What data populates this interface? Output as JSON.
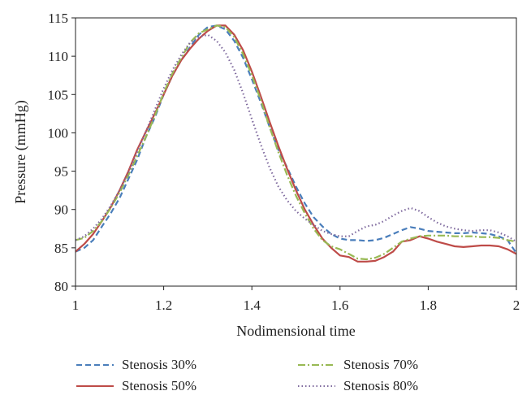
{
  "chart_data": {
    "type": "line",
    "xlabel": "Nodimensional time",
    "ylabel": "Pressure (mmHg)",
    "xlim": [
      1,
      2
    ],
    "ylim": [
      80,
      115
    ],
    "xticks": [
      "1",
      "1.2",
      "1.4",
      "1.6",
      "1.8",
      "2"
    ],
    "yticks": [
      "80",
      "85",
      "90",
      "95",
      "100",
      "105",
      "110",
      "115"
    ],
    "grid": false,
    "legend_position": "bottom",
    "series": [
      {
        "name": "Stenosis 30%",
        "color": "#4a7ebb",
        "dash": "dashed",
        "x": [
          1.0,
          1.02,
          1.04,
          1.06,
          1.08,
          1.1,
          1.12,
          1.14,
          1.16,
          1.18,
          1.2,
          1.22,
          1.24,
          1.26,
          1.28,
          1.3,
          1.32,
          1.34,
          1.36,
          1.38,
          1.4,
          1.42,
          1.44,
          1.46,
          1.48,
          1.5,
          1.52,
          1.54,
          1.56,
          1.58,
          1.6,
          1.62,
          1.64,
          1.66,
          1.68,
          1.7,
          1.72,
          1.74,
          1.76,
          1.78,
          1.8,
          1.82,
          1.84,
          1.86,
          1.88,
          1.9,
          1.92,
          1.94,
          1.96,
          1.98,
          2.0
        ],
        "y": [
          84.5,
          85.0,
          86.0,
          87.8,
          89.5,
          91.5,
          94.0,
          96.5,
          99.5,
          102.0,
          105.0,
          107.5,
          109.5,
          111.2,
          112.8,
          113.8,
          114.0,
          113.5,
          112.0,
          109.8,
          107.0,
          104.0,
          100.8,
          97.8,
          95.5,
          93.0,
          90.8,
          89.0,
          87.8,
          86.8,
          86.2,
          86.0,
          86.0,
          85.9,
          86.0,
          86.3,
          86.8,
          87.3,
          87.7,
          87.5,
          87.2,
          87.1,
          87.0,
          86.9,
          86.9,
          87.0,
          86.9,
          86.8,
          86.5,
          86.0,
          84.3
        ]
      },
      {
        "name": "Stenosis 50%",
        "color": "#be4b48",
        "dash": "solid",
        "x": [
          1.0,
          1.02,
          1.04,
          1.06,
          1.08,
          1.1,
          1.12,
          1.14,
          1.16,
          1.18,
          1.2,
          1.22,
          1.24,
          1.26,
          1.28,
          1.3,
          1.32,
          1.34,
          1.36,
          1.38,
          1.4,
          1.42,
          1.44,
          1.46,
          1.48,
          1.5,
          1.52,
          1.54,
          1.56,
          1.58,
          1.6,
          1.62,
          1.64,
          1.66,
          1.68,
          1.7,
          1.72,
          1.74,
          1.76,
          1.78,
          1.8,
          1.82,
          1.84,
          1.86,
          1.88,
          1.9,
          1.92,
          1.94,
          1.96,
          1.98,
          2.0
        ],
        "y": [
          84.5,
          85.5,
          86.8,
          88.5,
          90.3,
          92.5,
          95.0,
          97.8,
          100.2,
          102.5,
          105.0,
          107.5,
          109.5,
          111.0,
          112.3,
          113.3,
          114.0,
          114.0,
          112.8,
          110.8,
          108.0,
          104.8,
          101.5,
          98.3,
          95.3,
          92.5,
          90.0,
          88.0,
          86.2,
          85.0,
          84.0,
          83.8,
          83.2,
          83.2,
          83.3,
          83.8,
          84.5,
          85.8,
          86.0,
          86.5,
          86.2,
          85.8,
          85.5,
          85.2,
          85.1,
          85.2,
          85.3,
          85.3,
          85.2,
          84.8,
          84.2
        ]
      },
      {
        "name": "Stenosis 70%",
        "color": "#98b954",
        "dash": "dashdot",
        "x": [
          1.0,
          1.02,
          1.04,
          1.06,
          1.08,
          1.1,
          1.12,
          1.14,
          1.16,
          1.18,
          1.2,
          1.22,
          1.24,
          1.26,
          1.28,
          1.3,
          1.32,
          1.34,
          1.36,
          1.38,
          1.4,
          1.42,
          1.44,
          1.46,
          1.48,
          1.5,
          1.52,
          1.54,
          1.56,
          1.58,
          1.6,
          1.62,
          1.64,
          1.66,
          1.68,
          1.7,
          1.72,
          1.74,
          1.76,
          1.78,
          1.8,
          1.82,
          1.84,
          1.86,
          1.88,
          1.9,
          1.92,
          1.94,
          1.96,
          1.98,
          2.0
        ],
        "y": [
          86.0,
          86.3,
          87.2,
          88.5,
          90.2,
          92.2,
          94.5,
          97.0,
          99.5,
          102.2,
          105.2,
          107.8,
          109.8,
          111.8,
          113.0,
          113.5,
          114.0,
          113.8,
          112.5,
          110.3,
          107.5,
          104.3,
          100.8,
          97.5,
          94.5,
          91.8,
          89.5,
          87.5,
          86.0,
          85.2,
          84.8,
          84.2,
          83.6,
          83.5,
          83.7,
          84.2,
          85.0,
          85.8,
          86.2,
          86.5,
          86.6,
          86.6,
          86.6,
          86.5,
          86.5,
          86.5,
          86.4,
          86.4,
          86.3,
          86.0,
          85.8
        ]
      },
      {
        "name": "Stenosis 80%",
        "color": "#7f6a9e",
        "dash": "dotted",
        "x": [
          1.0,
          1.02,
          1.04,
          1.06,
          1.08,
          1.1,
          1.12,
          1.14,
          1.16,
          1.18,
          1.2,
          1.22,
          1.24,
          1.26,
          1.28,
          1.3,
          1.32,
          1.34,
          1.36,
          1.38,
          1.4,
          1.42,
          1.44,
          1.46,
          1.48,
          1.5,
          1.52,
          1.54,
          1.56,
          1.58,
          1.6,
          1.62,
          1.64,
          1.66,
          1.68,
          1.7,
          1.72,
          1.74,
          1.76,
          1.78,
          1.8,
          1.82,
          1.84,
          1.86,
          1.88,
          1.9,
          1.92,
          1.94,
          1.96,
          1.98,
          2.0
        ],
        "y": [
          86.0,
          86.5,
          87.5,
          88.8,
          90.5,
          92.5,
          94.8,
          97.5,
          100.2,
          103.0,
          105.8,
          108.2,
          110.2,
          111.8,
          112.5,
          112.8,
          112.0,
          110.5,
          108.2,
          105.2,
          101.8,
          98.5,
          95.5,
          93.0,
          91.2,
          89.8,
          88.8,
          88.0,
          87.2,
          86.8,
          86.5,
          86.5,
          87.2,
          87.8,
          88.0,
          88.5,
          89.2,
          89.8,
          90.2,
          89.8,
          89.0,
          88.3,
          87.8,
          87.5,
          87.3,
          87.2,
          87.3,
          87.3,
          87.0,
          86.5,
          85.8
        ]
      }
    ]
  }
}
